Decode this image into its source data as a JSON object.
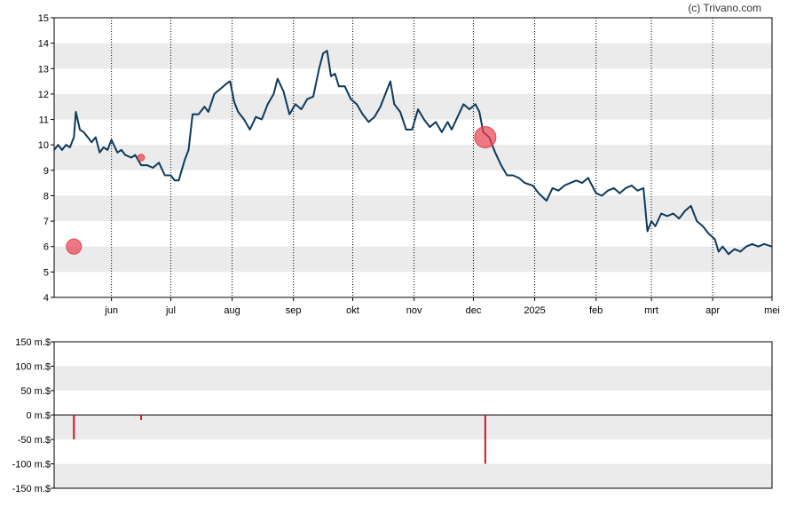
{
  "copyright": "(c) Trivano.com",
  "colors": {
    "price_line": "#0d3a5c",
    "band": "#ebebeb",
    "marker": "#e8404f",
    "volume_bar": "#d0142c",
    "axis": "#000000"
  },
  "chart_data": [
    {
      "type": "line",
      "name": "price",
      "ylim": [
        4,
        15
      ],
      "yticks": [
        4,
        5,
        6,
        7,
        8,
        9,
        10,
        11,
        12,
        13,
        14,
        15
      ],
      "grid": "alternating horizontal bands, dotted vertical month lines",
      "xlim": [
        "2024-05-03",
        "2025-05-01"
      ],
      "xticks": [
        {
          "date": "2024-06-01",
          "label": "jun"
        },
        {
          "date": "2024-07-01",
          "label": "jul"
        },
        {
          "date": "2024-08-01",
          "label": "aug"
        },
        {
          "date": "2024-09-01",
          "label": "sep"
        },
        {
          "date": "2024-10-01",
          "label": "okt"
        },
        {
          "date": "2024-11-01",
          "label": "nov"
        },
        {
          "date": "2024-12-01",
          "label": "dec"
        },
        {
          "date": "2025-01-01",
          "label": "2025"
        },
        {
          "date": "2025-02-01",
          "label": "feb"
        },
        {
          "date": "2025-03-01",
          "label": "mrt"
        },
        {
          "date": "2025-04-01",
          "label": "apr"
        },
        {
          "date": "2025-05-01",
          "label": "mei"
        }
      ],
      "points": [
        [
          "2024-05-03",
          9.8
        ],
        [
          "2024-05-05",
          10.0
        ],
        [
          "2024-05-07",
          9.8
        ],
        [
          "2024-05-09",
          10.0
        ],
        [
          "2024-05-11",
          9.9
        ],
        [
          "2024-05-13",
          10.3
        ],
        [
          "2024-05-14",
          11.3
        ],
        [
          "2024-05-16",
          10.6
        ],
        [
          "2024-05-18",
          10.5
        ],
        [
          "2024-05-20",
          10.3
        ],
        [
          "2024-05-22",
          10.1
        ],
        [
          "2024-05-24",
          10.3
        ],
        [
          "2024-05-26",
          9.7
        ],
        [
          "2024-05-28",
          9.9
        ],
        [
          "2024-05-30",
          9.8
        ],
        [
          "2024-06-01",
          10.2
        ],
        [
          "2024-06-04",
          9.7
        ],
        [
          "2024-06-06",
          9.8
        ],
        [
          "2024-06-08",
          9.6
        ],
        [
          "2024-06-11",
          9.5
        ],
        [
          "2024-06-13",
          9.6
        ],
        [
          "2024-06-16",
          9.2
        ],
        [
          "2024-06-19",
          9.2
        ],
        [
          "2024-06-22",
          9.1
        ],
        [
          "2024-06-25",
          9.3
        ],
        [
          "2024-06-28",
          8.8
        ],
        [
          "2024-07-01",
          8.8
        ],
        [
          "2024-07-03",
          8.6
        ],
        [
          "2024-07-05",
          8.6
        ],
        [
          "2024-07-08",
          9.4
        ],
        [
          "2024-07-10",
          9.8
        ],
        [
          "2024-07-12",
          11.2
        ],
        [
          "2024-07-15",
          11.2
        ],
        [
          "2024-07-18",
          11.5
        ],
        [
          "2024-07-20",
          11.3
        ],
        [
          "2024-07-23",
          12.0
        ],
        [
          "2024-07-26",
          12.2
        ],
        [
          "2024-07-29",
          12.4
        ],
        [
          "2024-07-31",
          12.5
        ],
        [
          "2024-08-02",
          11.7
        ],
        [
          "2024-08-04",
          11.3
        ],
        [
          "2024-08-07",
          11.0
        ],
        [
          "2024-08-10",
          10.6
        ],
        [
          "2024-08-13",
          11.1
        ],
        [
          "2024-08-16",
          11.0
        ],
        [
          "2024-08-19",
          11.6
        ],
        [
          "2024-08-22",
          12.0
        ],
        [
          "2024-08-24",
          12.6
        ],
        [
          "2024-08-27",
          12.1
        ],
        [
          "2024-08-30",
          11.2
        ],
        [
          "2024-09-02",
          11.6
        ],
        [
          "2024-09-05",
          11.4
        ],
        [
          "2024-09-08",
          11.8
        ],
        [
          "2024-09-11",
          11.9
        ],
        [
          "2024-09-14",
          13.0
        ],
        [
          "2024-09-16",
          13.6
        ],
        [
          "2024-09-18",
          13.7
        ],
        [
          "2024-09-20",
          12.7
        ],
        [
          "2024-09-22",
          12.8
        ],
        [
          "2024-09-24",
          12.3
        ],
        [
          "2024-09-27",
          12.3
        ],
        [
          "2024-09-30",
          11.8
        ],
        [
          "2024-10-03",
          11.6
        ],
        [
          "2024-10-06",
          11.2
        ],
        [
          "2024-10-09",
          10.9
        ],
        [
          "2024-10-12",
          11.1
        ],
        [
          "2024-10-15",
          11.5
        ],
        [
          "2024-10-18",
          12.1
        ],
        [
          "2024-10-20",
          12.5
        ],
        [
          "2024-10-22",
          11.6
        ],
        [
          "2024-10-25",
          11.3
        ],
        [
          "2024-10-28",
          10.6
        ],
        [
          "2024-10-31",
          10.6
        ],
        [
          "2024-11-03",
          11.4
        ],
        [
          "2024-11-06",
          11.0
        ],
        [
          "2024-11-09",
          10.7
        ],
        [
          "2024-11-12",
          10.9
        ],
        [
          "2024-11-15",
          10.5
        ],
        [
          "2024-11-18",
          10.9
        ],
        [
          "2024-11-20",
          10.6
        ],
        [
          "2024-11-23",
          11.1
        ],
        [
          "2024-11-26",
          11.6
        ],
        [
          "2024-11-29",
          11.4
        ],
        [
          "2024-12-02",
          11.6
        ],
        [
          "2024-12-04",
          11.3
        ],
        [
          "2024-12-06",
          10.5
        ],
        [
          "2024-12-09",
          10.3
        ],
        [
          "2024-12-12",
          9.7
        ],
        [
          "2024-12-15",
          9.2
        ],
        [
          "2024-12-18",
          8.8
        ],
        [
          "2024-12-21",
          8.8
        ],
        [
          "2024-12-24",
          8.7
        ],
        [
          "2024-12-27",
          8.5
        ],
        [
          "2024-12-31",
          8.4
        ],
        [
          "2025-01-03",
          8.1
        ],
        [
          "2025-01-07",
          7.8
        ],
        [
          "2025-01-10",
          8.3
        ],
        [
          "2025-01-13",
          8.2
        ],
        [
          "2025-01-16",
          8.4
        ],
        [
          "2025-01-19",
          8.5
        ],
        [
          "2025-01-22",
          8.6
        ],
        [
          "2025-01-25",
          8.5
        ],
        [
          "2025-01-28",
          8.7
        ],
        [
          "2025-02-01",
          8.1
        ],
        [
          "2025-02-04",
          8.0
        ],
        [
          "2025-02-07",
          8.2
        ],
        [
          "2025-02-10",
          8.3
        ],
        [
          "2025-02-13",
          8.1
        ],
        [
          "2025-02-16",
          8.3
        ],
        [
          "2025-02-19",
          8.4
        ],
        [
          "2025-02-22",
          8.2
        ],
        [
          "2025-02-25",
          8.3
        ],
        [
          "2025-02-27",
          6.6
        ],
        [
          "2025-03-01",
          7.0
        ],
        [
          "2025-03-03",
          6.8
        ],
        [
          "2025-03-06",
          7.3
        ],
        [
          "2025-03-09",
          7.2
        ],
        [
          "2025-03-12",
          7.3
        ],
        [
          "2025-03-15",
          7.1
        ],
        [
          "2025-03-18",
          7.4
        ],
        [
          "2025-03-21",
          7.6
        ],
        [
          "2025-03-24",
          7.0
        ],
        [
          "2025-03-27",
          6.8
        ],
        [
          "2025-03-30",
          6.5
        ],
        [
          "2025-04-02",
          6.3
        ],
        [
          "2025-04-04",
          5.8
        ],
        [
          "2025-04-06",
          6.0
        ],
        [
          "2025-04-09",
          5.7
        ],
        [
          "2025-04-12",
          5.9
        ],
        [
          "2025-04-15",
          5.8
        ],
        [
          "2025-04-18",
          6.0
        ],
        [
          "2025-04-21",
          6.1
        ],
        [
          "2025-04-24",
          6.0
        ],
        [
          "2025-04-27",
          6.1
        ],
        [
          "2025-05-01",
          6.0
        ]
      ],
      "markers": [
        {
          "date": "2024-05-13",
          "value": 6.0,
          "magnitude": 50
        },
        {
          "date": "2024-06-16",
          "value": 9.5,
          "magnitude": 10
        },
        {
          "date": "2024-12-07",
          "value": 10.3,
          "magnitude": 100
        }
      ]
    },
    {
      "type": "bar",
      "name": "volume",
      "ylim": [
        -150,
        150
      ],
      "yticks": [
        {
          "value": 150,
          "label": "150 m.$"
        },
        {
          "value": 100,
          "label": "100 m.$"
        },
        {
          "value": 50,
          "label": "50 m.$"
        },
        {
          "value": 0,
          "label": "0 m.$"
        },
        {
          "value": -50,
          "label": "-50 m.$"
        },
        {
          "value": -100,
          "label": "-100 m.$"
        },
        {
          "value": -150,
          "label": "-150 m.$"
        }
      ],
      "bars": [
        {
          "date": "2024-05-13",
          "value": -50
        },
        {
          "date": "2024-06-16",
          "value": -10
        },
        {
          "date": "2024-12-07",
          "value": -100
        }
      ]
    }
  ]
}
